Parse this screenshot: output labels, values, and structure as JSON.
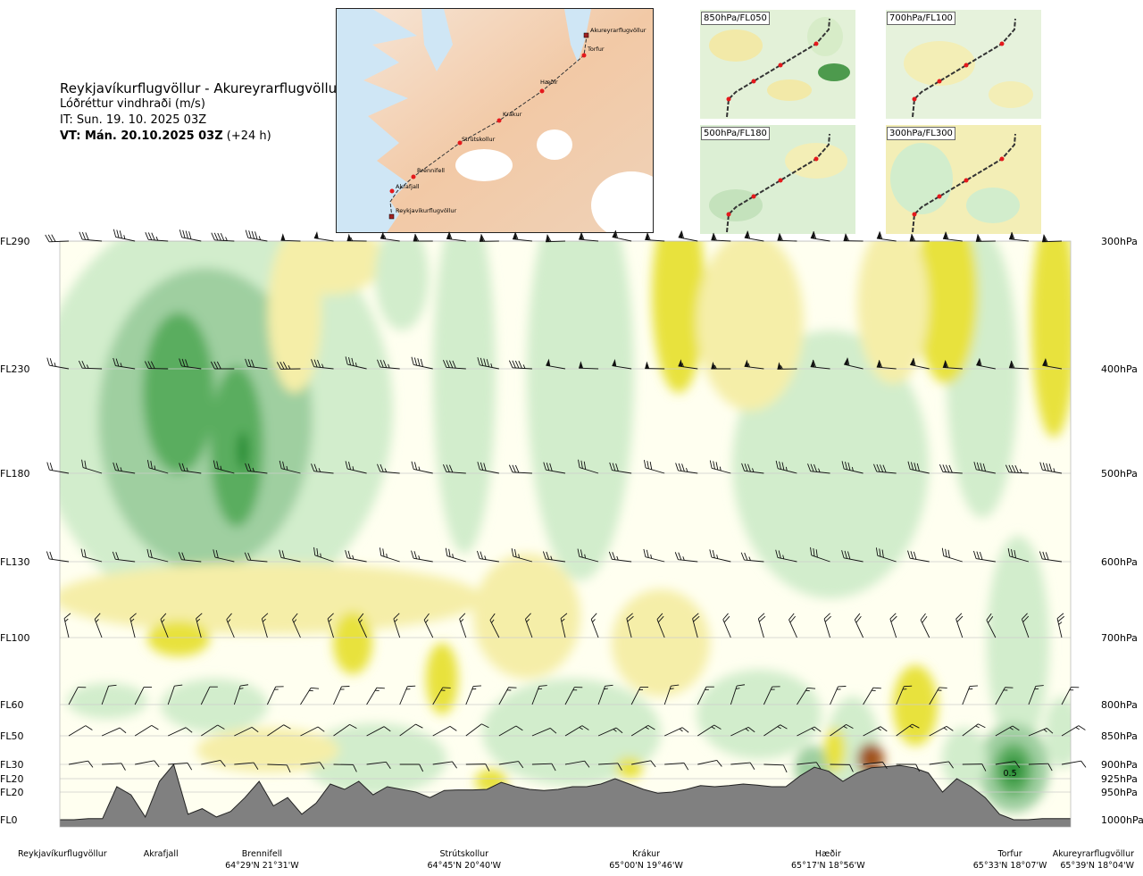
{
  "header": {
    "title": "Reykjavíkurflugvöllur - Akureyrarflugvöllur",
    "parameter": "Lóðréttur vindhraði (m/s)",
    "issue_time": "IT: Sun. 19. 10. 2025 03Z",
    "valid_time_bold": "VT: Mán. 20.10.2025 03Z",
    "valid_offset": "(+24 h)"
  },
  "route_map": {
    "labels": [
      "Akureyrarflugvöllur",
      "Torfur",
      "Hæðir",
      "Krákur",
      "Strútskollur",
      "Brennifell",
      "Akrafjall",
      "Reykjavíkurflugvöllur"
    ],
    "route_color": "#333333",
    "point_color": "#e4191c"
  },
  "mini_maps": [
    {
      "label": "850hPa/FL050"
    },
    {
      "label": "700hPa/FL100"
    },
    {
      "label": "500hPa/FL180"
    },
    {
      "label": "300hPa/FL300"
    }
  ],
  "chart_data": {
    "type": "heatmap",
    "title": "Reykjavíkurflugvöllur - Akureyrarflugvöllur",
    "quantity": "Lóðréttur vindhraði (m/s)",
    "flight_levels": [
      "FL290",
      "FL230",
      "FL180",
      "FL130",
      "FL100",
      "FL60",
      "FL50",
      "FL30",
      "FL20",
      "FL20",
      "FL0"
    ],
    "pressure_levels": [
      "300hPa",
      "400hPa",
      "500hPa",
      "600hPa",
      "700hPa",
      "800hPa",
      "850hPa",
      "900hPa",
      "925hPa",
      "950hPa",
      "1000hPa"
    ],
    "pressure_values_hpa": [
      300,
      400,
      500,
      600,
      700,
      800,
      850,
      900,
      925,
      950,
      1000
    ],
    "waypoints": [
      {
        "name": "Reykjavíkurflugvöllur",
        "coord": "",
        "dist": 0
      },
      {
        "name": "Akrafjall",
        "coord": "",
        "dist": 0.1
      },
      {
        "name": "Brennifell",
        "coord": "64°29'N 21°31'W",
        "dist": 0.2
      },
      {
        "name": "Strútskollur",
        "coord": "64°45'N 20°40'W",
        "dist": 0.4
      },
      {
        "name": "Krákur",
        "coord": "65°00'N 19°46'W",
        "dist": 0.58
      },
      {
        "name": "Hæðir",
        "coord": "65°17'N 18°56'W",
        "dist": 0.76
      },
      {
        "name": "Torfur",
        "coord": "65°33'N 18°07'W",
        "dist": 0.94
      },
      {
        "name": "Akureyrarflugvöllur",
        "coord": "65°39'N 18°04'W",
        "dist": 1.0
      }
    ],
    "annotations": [
      {
        "text": "0.5",
        "dist": 0.94,
        "pressure_hpa": 920
      }
    ],
    "colors": {
      "down_strong": "#e8e23c",
      "down_weak": "#f5eea8",
      "neutral": "#fffff0",
      "up_weak": "#d2edcc",
      "up_mid": "#9fcfa0",
      "up_strong": "#5aad5f",
      "up_max": "#1f8a2e",
      "terrain": "#808080",
      "sink_max": "#a0521d"
    },
    "terrain_profile_hpa": [
      1000,
      1000,
      998,
      998,
      940,
      955,
      995,
      930,
      900,
      990,
      980,
      995,
      985,
      960,
      930,
      975,
      960,
      990,
      970,
      935,
      945,
      930,
      955,
      940,
      945,
      950,
      960,
      947,
      946,
      946,
      945,
      932,
      940,
      945,
      947,
      945,
      940,
      940,
      935,
      925,
      935,
      945,
      952,
      950,
      945,
      938,
      940,
      938,
      935,
      937,
      940,
      940,
      920,
      905,
      912,
      930,
      915,
      906,
      904,
      902,
      906,
      915,
      950,
      925,
      940,
      960,
      990,
      1000,
      1000,
      998,
      998,
      998
    ],
    "wind_barb_speeds_kt": [
      5,
      5,
      5,
      10,
      10,
      10,
      15,
      15,
      15,
      20,
      20,
      25,
      25,
      25,
      30,
      30,
      35,
      35,
      40,
      45,
      50,
      50,
      55,
      55,
      60
    ],
    "grid": "on",
    "legend": "none"
  }
}
